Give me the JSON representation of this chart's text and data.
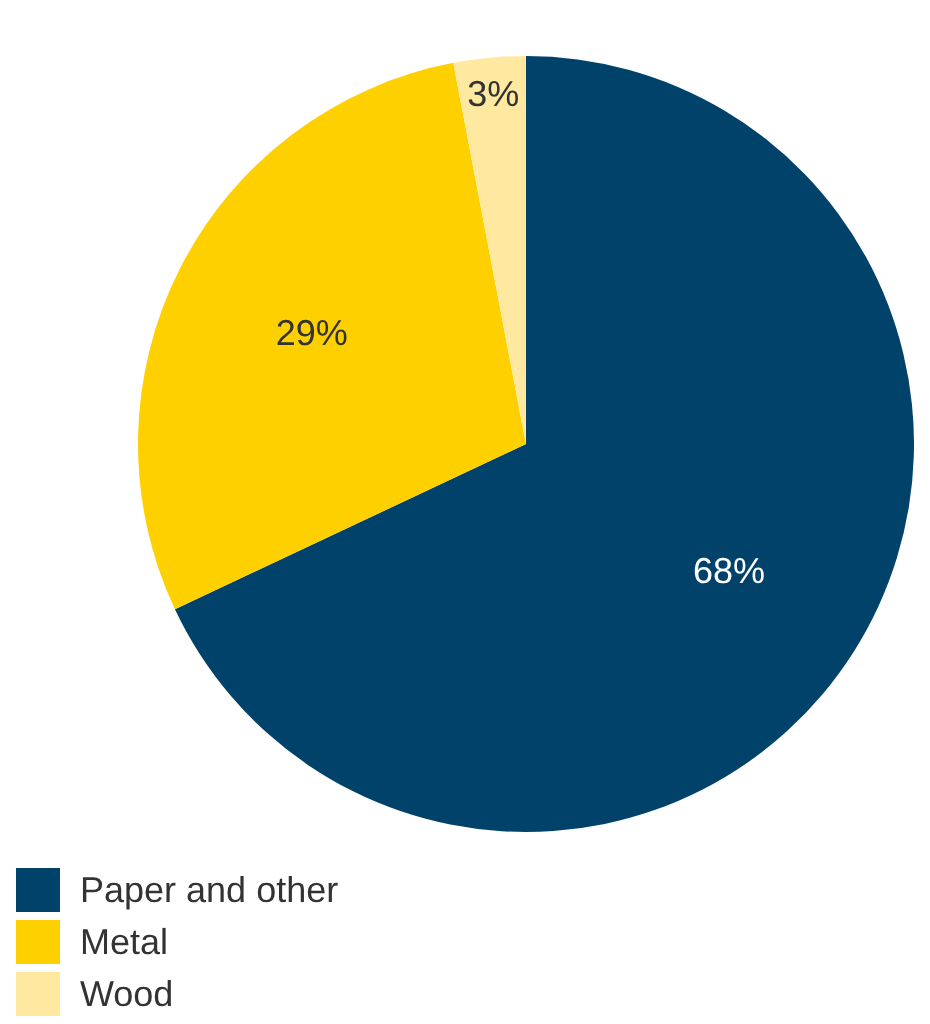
{
  "chart_data": {
    "type": "pie",
    "categories": [
      "Paper and other",
      "Metal",
      "Wood"
    ],
    "values": [
      68,
      29,
      3
    ],
    "colors": [
      "#00426a",
      "#ffd000",
      "#ffe9a0"
    ],
    "value_labels": [
      "68%",
      "29%",
      "3%"
    ],
    "legend": "bottom left"
  }
}
